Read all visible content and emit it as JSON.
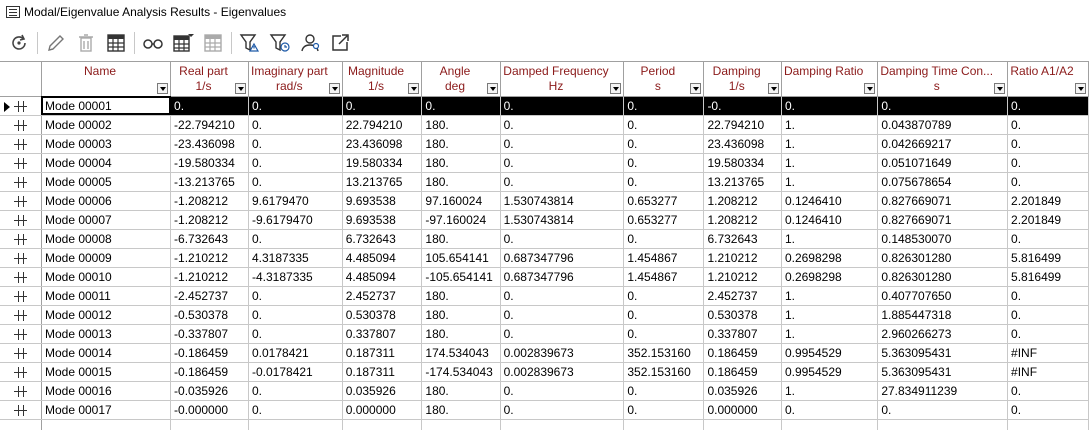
{
  "window": {
    "title": "Modal/Eigenvalue Analysis Results - Eigenvalues"
  },
  "toolbar": {
    "buttons": [
      {
        "icon": "refresh-icon"
      },
      {
        "icon": "pencil-icon"
      },
      {
        "icon": "trash-icon"
      },
      {
        "icon": "table-icon"
      },
      {
        "icon": "glasses-icon"
      },
      {
        "icon": "table-dropdown-icon"
      },
      {
        "icon": "table-disabled-icon"
      },
      {
        "icon": "filter-alert-icon"
      },
      {
        "icon": "filter-clock-icon"
      },
      {
        "icon": "users-icon"
      },
      {
        "icon": "export-icon"
      }
    ]
  },
  "table": {
    "columns": [
      {
        "line1": "Name",
        "line2": ""
      },
      {
        "line1": "Real part",
        "line2": "1/s"
      },
      {
        "line1": "Imaginary part",
        "line2": "rad/s"
      },
      {
        "line1": "Magnitude",
        "line2": "1/s"
      },
      {
        "line1": "Angle",
        "line2": "deg"
      },
      {
        "line1": "Damped Frequency",
        "line2": "Hz"
      },
      {
        "line1": "Period",
        "line2": "s"
      },
      {
        "line1": "Damping",
        "line2": "1/s"
      },
      {
        "line1": "Damping Ratio",
        "line2": ""
      },
      {
        "line1": "Damping Time Con...",
        "line2": "s"
      },
      {
        "line1": "Ratio A1/A2",
        "line2": ""
      }
    ],
    "rows": [
      [
        "Mode 00001",
        "0.",
        "0.",
        "0.",
        "0.",
        "0.",
        "0.",
        "-0.",
        "0.",
        "0.",
        "0."
      ],
      [
        "Mode 00002",
        "-22.794210",
        "0.",
        "22.794210",
        "180.",
        "0.",
        "0.",
        "22.794210",
        "1.",
        "0.043870789",
        "0."
      ],
      [
        "Mode 00003",
        "-23.436098",
        "0.",
        "23.436098",
        "180.",
        "0.",
        "0.",
        "23.436098",
        "1.",
        "0.042669217",
        "0."
      ],
      [
        "Mode 00004",
        "-19.580334",
        "0.",
        "19.580334",
        "180.",
        "0.",
        "0.",
        "19.580334",
        "1.",
        "0.051071649",
        "0."
      ],
      [
        "Mode 00005",
        "-13.213765",
        "0.",
        "13.213765",
        "180.",
        "0.",
        "0.",
        "13.213765",
        "1.",
        "0.075678654",
        "0."
      ],
      [
        "Mode 00006",
        "-1.208212",
        "9.6179470",
        "9.693538",
        "97.160024",
        "1.530743814",
        "0.653277",
        "1.208212",
        "0.1246410",
        "0.827669071",
        "2.201849"
      ],
      [
        "Mode 00007",
        "-1.208212",
        "-9.6179470",
        "9.693538",
        "-97.160024",
        "1.530743814",
        "0.653277",
        "1.208212",
        "0.1246410",
        "0.827669071",
        "2.201849"
      ],
      [
        "Mode 00008",
        "-6.732643",
        "0.",
        "6.732643",
        "180.",
        "0.",
        "0.",
        "6.732643",
        "1.",
        "0.148530070",
        "0."
      ],
      [
        "Mode 00009",
        "-1.210212",
        "4.3187335",
        "4.485094",
        "105.654141",
        "0.687347796",
        "1.454867",
        "1.210212",
        "0.2698298",
        "0.826301280",
        "5.816499"
      ],
      [
        "Mode 00010",
        "-1.210212",
        "-4.3187335",
        "4.485094",
        "-105.654141",
        "0.687347796",
        "1.454867",
        "1.210212",
        "0.2698298",
        "0.826301280",
        "5.816499"
      ],
      [
        "Mode 00011",
        "-2.452737",
        "0.",
        "2.452737",
        "180.",
        "0.",
        "0.",
        "2.452737",
        "1.",
        "0.407707650",
        "0."
      ],
      [
        "Mode 00012",
        "-0.530378",
        "0.",
        "0.530378",
        "180.",
        "0.",
        "0.",
        "0.530378",
        "1.",
        "1.885447318",
        "0."
      ],
      [
        "Mode 00013",
        "-0.337807",
        "0.",
        "0.337807",
        "180.",
        "0.",
        "0.",
        "0.337807",
        "1.",
        "2.960266273",
        "0."
      ],
      [
        "Mode 00014",
        "-0.186459",
        "0.0178421",
        "0.187311",
        "174.534043",
        "0.002839673",
        "352.153160",
        "0.186459",
        "0.9954529",
        "5.363095431",
        "#INF"
      ],
      [
        "Mode 00015",
        "-0.186459",
        "-0.0178421",
        "0.187311",
        "-174.534043",
        "0.002839673",
        "352.153160",
        "0.186459",
        "0.9954529",
        "5.363095431",
        "#INF"
      ],
      [
        "Mode 00016",
        "-0.035926",
        "0.",
        "0.035926",
        "180.",
        "0.",
        "0.",
        "0.035926",
        "1.",
        "27.834911239",
        "0."
      ],
      [
        "Mode 00017",
        "-0.000000",
        "0.",
        "0.000000",
        "180.",
        "0.",
        "0.",
        "0.000000",
        "0.",
        "0.",
        "0."
      ]
    ],
    "selected_row": 0
  }
}
